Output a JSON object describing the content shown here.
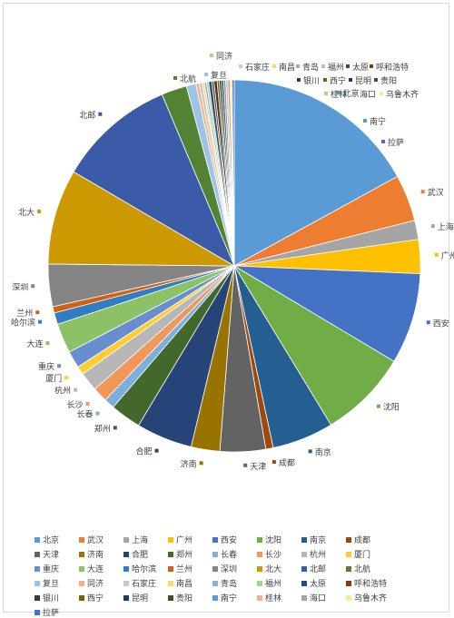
{
  "chart_data": {
    "type": "pie",
    "title": "",
    "legend_position": "bottom",
    "start_angle_deg": 0,
    "direction": "clockwise",
    "slices": [
      {
        "label": "北京",
        "value": 18.5,
        "color": "#5b9bd5"
      },
      {
        "label": "武汉",
        "value": 4.4,
        "color": "#ed7d31"
      },
      {
        "label": "上海",
        "value": 1.8,
        "color": "#a5a5a5"
      },
      {
        "label": "广州",
        "value": 3.2,
        "color": "#ffc000"
      },
      {
        "label": "西安",
        "value": 8.6,
        "color": "#4472c4"
      },
      {
        "label": "沈阳",
        "value": 8.4,
        "color": "#70ad47"
      },
      {
        "label": "南京",
        "value": 5.8,
        "color": "#255e91"
      },
      {
        "label": "成都",
        "value": 0.7,
        "color": "#9e480e"
      },
      {
        "label": "天津",
        "value": 4.3,
        "color": "#636363"
      },
      {
        "label": "济南",
        "value": 2.7,
        "color": "#997300"
      },
      {
        "label": "合肥",
        "value": 5.3,
        "color": "#264478"
      },
      {
        "label": "郑州",
        "value": 2.9,
        "color": "#43682b"
      },
      {
        "label": "长春",
        "value": 1.0,
        "color": "#7cafdd"
      },
      {
        "label": "长沙",
        "value": 1.4,
        "color": "#f1975a"
      },
      {
        "label": "杭州",
        "value": 1.8,
        "color": "#b7b7b7"
      },
      {
        "label": "厦门",
        "value": 0.8,
        "color": "#ffcd33"
      },
      {
        "label": "重庆",
        "value": 1.6,
        "color": "#698ed0"
      },
      {
        "label": "大连",
        "value": 2.8,
        "color": "#8cc168"
      },
      {
        "label": "哈尔滨",
        "value": 1.1,
        "color": "#327dc2"
      },
      {
        "label": "兰州",
        "value": 0.6,
        "color": "#d26012"
      },
      {
        "label": "深圳",
        "value": 4.0,
        "color": "#848484"
      },
      {
        "label": "北大",
        "value": 9.0,
        "color": "#cc9a00"
      },
      {
        "label": "北邮",
        "value": 11.1,
        "color": "#3a5ba8"
      },
      {
        "label": "北航",
        "value": 2.4,
        "color": "#548235"
      },
      {
        "label": "复旦",
        "value": 0.9,
        "color": "#9dc3e6"
      },
      {
        "label": "同济",
        "value": 0.3,
        "color": "#f4b183"
      },
      {
        "label": "石家庄",
        "value": 0.3,
        "color": "#c9c9c9"
      },
      {
        "label": "南昌",
        "value": 0.2,
        "color": "#ffd966"
      },
      {
        "label": "青岛",
        "value": 0.2,
        "color": "#8faadc"
      },
      {
        "label": "福州",
        "value": 0.2,
        "color": "#a9d18e"
      },
      {
        "label": "太原",
        "value": 0.3,
        "color": "#1f4e79"
      },
      {
        "label": "呼和浩特",
        "value": 0.2,
        "color": "#843c0c"
      },
      {
        "label": "银川",
        "value": 0.3,
        "color": "#3b3838"
      },
      {
        "label": "西宁",
        "value": 0.2,
        "color": "#7f6000"
      },
      {
        "label": "昆明",
        "value": 0.2,
        "color": "#203864"
      },
      {
        "label": "贵阳",
        "value": 0.2,
        "color": "#375623"
      },
      {
        "label": "南宁",
        "value": 0.2,
        "color": "#5b9bd5"
      },
      {
        "label": "桂林",
        "value": 0.2,
        "color": "#f4b183"
      },
      {
        "label": "海口",
        "value": 0.2,
        "color": "#a5a5a5"
      },
      {
        "label": "乌鲁木齐",
        "value": 0.2,
        "color": "#ffe699"
      },
      {
        "label": "拉萨",
        "value": 0.2,
        "color": "#4472c4"
      }
    ]
  }
}
